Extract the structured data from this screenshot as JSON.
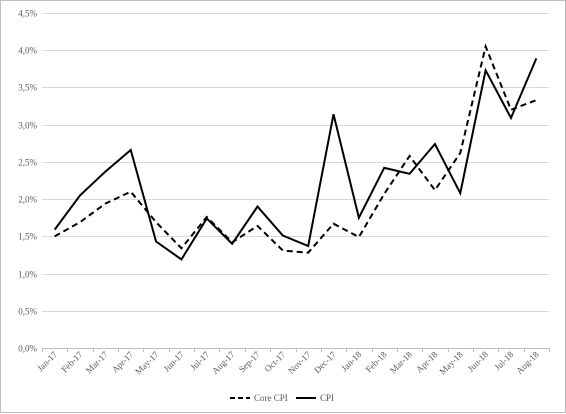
{
  "chart_data": {
    "type": "line",
    "title": "",
    "xlabel": "",
    "ylabel": "",
    "categories": [
      "Jan-17",
      "Feb-17",
      "Mar-17",
      "Apr-17",
      "May-17",
      "Jun-17",
      "Jul-17",
      "Aug-17",
      "Sep-17",
      "Oct-17",
      "Nov-17",
      "Dec-17",
      "Jan-18",
      "Feb-18",
      "Mar-18",
      "Apr-18",
      "May-18",
      "Jun-18",
      "Jul-18",
      "Aug-18"
    ],
    "ylim": [
      0,
      4.5
    ],
    "yticks": [
      0,
      0.5,
      1.0,
      1.5,
      2.0,
      2.5,
      3.0,
      3.5,
      4.0,
      4.5
    ],
    "ytick_labels": [
      "0,0%",
      "0,5%",
      "1,0%",
      "1,5%",
      "2,0%",
      "2,5%",
      "3,0%",
      "3,5%",
      "4,0%",
      "4,5%"
    ],
    "grid": "horizontal",
    "legend_position": "bottom",
    "series": [
      {
        "name": "Core CPI",
        "style": "dashed",
        "color": "#000000",
        "values": [
          1.5,
          1.69,
          1.94,
          2.1,
          1.69,
          1.34,
          1.76,
          1.42,
          1.64,
          1.31,
          1.28,
          1.67,
          1.49,
          2.07,
          2.58,
          2.12,
          2.62,
          4.05,
          3.2,
          3.33
        ]
      },
      {
        "name": "CPI",
        "style": "solid",
        "color": "#000000",
        "values": [
          1.59,
          2.05,
          2.37,
          2.66,
          1.43,
          1.19,
          1.74,
          1.4,
          1.9,
          1.51,
          1.37,
          3.14,
          1.75,
          2.42,
          2.34,
          2.74,
          2.08,
          3.73,
          3.09,
          3.89
        ]
      }
    ]
  },
  "colors": {
    "grid": "#d9d9d9",
    "axis": "#bfbfbf",
    "text": "#595959",
    "line": "#000000"
  }
}
